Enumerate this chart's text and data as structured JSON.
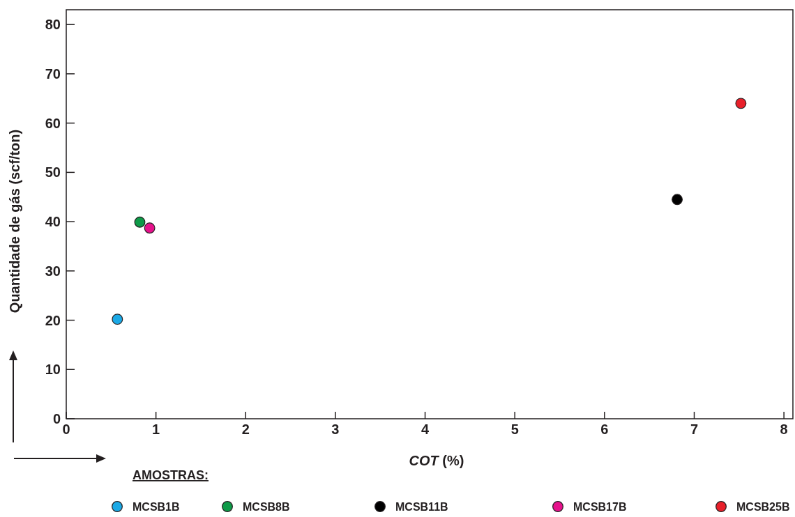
{
  "chart_data": {
    "type": "scatter",
    "xlabel": "COT (%)",
    "ylabel": "Quantidade de gás (scf/ton)",
    "legend_title": "AMOSTRAS:",
    "xlim": [
      0,
      8.1
    ],
    "ylim": [
      0,
      83
    ],
    "xticks": [
      0,
      1,
      2,
      3,
      4,
      5,
      6,
      7,
      8
    ],
    "yticks": [
      0,
      10,
      20,
      30,
      40,
      50,
      60,
      70,
      80
    ],
    "grid": false,
    "legend": "bottom",
    "marker": "circle",
    "series": [
      {
        "name": "MCSB1B",
        "color": "#1ba9e6",
        "x": [
          0.57
        ],
        "values": [
          20.2
        ]
      },
      {
        "name": "MCSB8B",
        "color": "#0e9a48",
        "x": [
          0.82
        ],
        "values": [
          39.9
        ]
      },
      {
        "name": "MCSB11B",
        "color": "#000000",
        "x": [
          6.81
        ],
        "values": [
          44.5
        ]
      },
      {
        "name": "MCSB17B",
        "color": "#e6128c",
        "x": [
          0.93
        ],
        "values": [
          38.7
        ]
      },
      {
        "name": "MCSB25B",
        "color": "#e8202a",
        "x": [
          7.52
        ],
        "values": [
          64
        ]
      }
    ]
  }
}
